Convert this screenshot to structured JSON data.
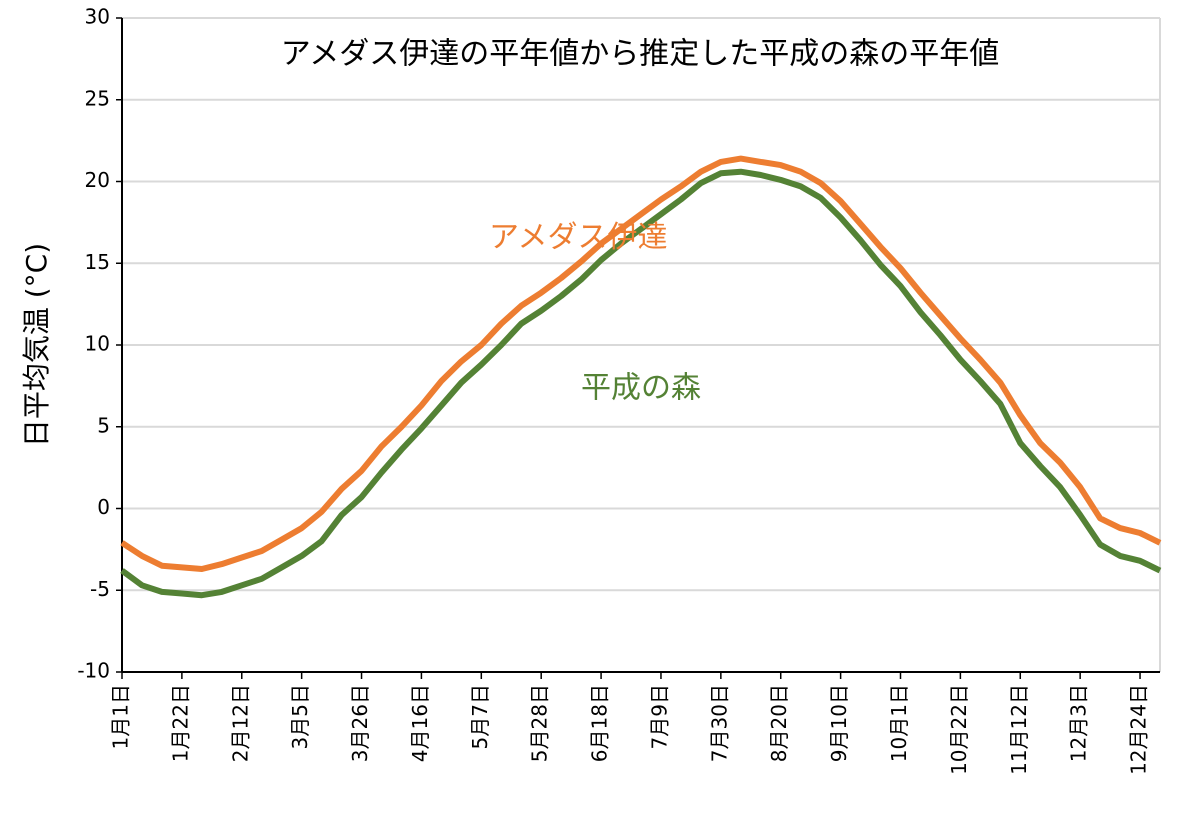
{
  "chart_data": {
    "type": "line",
    "title": "アメダス伊達の平年値から推定した平成の森の平年値",
    "y_label": "日平均気温 (°C)",
    "annotations": [
      {
        "text": "アメダス伊達",
        "color": "#ed7d31",
        "x": 160,
        "y": 16.5
      },
      {
        "text": "平成の森",
        "color": "#548235",
        "x": 182,
        "y": 7.3
      }
    ],
    "x": [
      0,
      7,
      14,
      21,
      28,
      35,
      42,
      49,
      56,
      63,
      70,
      77,
      84,
      91,
      98,
      105,
      112,
      119,
      126,
      133,
      140,
      147,
      154,
      161,
      168,
      175,
      182,
      189,
      196,
      203,
      210,
      217,
      224,
      231,
      238,
      245,
      252,
      259,
      266,
      273,
      280,
      287,
      294,
      301,
      308,
      315,
      322,
      329,
      336,
      343,
      350,
      357,
      364
    ],
    "xlim": [
      0,
      364
    ],
    "xticks": [
      {
        "value": 0,
        "label": "1月1日"
      },
      {
        "value": 21,
        "label": "1月22日"
      },
      {
        "value": 42,
        "label": "2月12日"
      },
      {
        "value": 63,
        "label": "3月5日"
      },
      {
        "value": 84,
        "label": "3月26日"
      },
      {
        "value": 105,
        "label": "4月16日"
      },
      {
        "value": 126,
        "label": "5月7日"
      },
      {
        "value": 147,
        "label": "5月28日"
      },
      {
        "value": 168,
        "label": "6月18日"
      },
      {
        "value": 189,
        "label": "7月9日"
      },
      {
        "value": 210,
        "label": "7月30日"
      },
      {
        "value": 231,
        "label": "8月20日"
      },
      {
        "value": 252,
        "label": "9月10日"
      },
      {
        "value": 273,
        "label": "10月1日"
      },
      {
        "value": 294,
        "label": "10月22日"
      },
      {
        "value": 315,
        "label": "11月12日"
      },
      {
        "value": 336,
        "label": "12月3日"
      },
      {
        "value": 357,
        "label": "12月24日"
      }
    ],
    "ylim": [
      -10,
      30
    ],
    "yticks": [
      -10,
      -5,
      0,
      5,
      10,
      15,
      20,
      25,
      30
    ],
    "grid": true,
    "series": [
      {
        "name": "アメダス伊達",
        "color": "#ed7d31",
        "values": [
          -2.1,
          -2.9,
          -3.5,
          -3.6,
          -3.7,
          -3.4,
          -3.0,
          -2.6,
          -1.9,
          -1.2,
          -0.2,
          1.2,
          2.3,
          3.8,
          5.0,
          6.3,
          7.8,
          9.0,
          10.0,
          11.3,
          12.4,
          13.2,
          14.1,
          15.1,
          16.2,
          17.1,
          18.0,
          18.9,
          19.7,
          20.6,
          21.2,
          21.4,
          21.2,
          21.0,
          20.6,
          19.9,
          18.8,
          17.4,
          16.0,
          14.7,
          13.2,
          11.8,
          10.4,
          9.1,
          7.7,
          5.7,
          4.0,
          2.8,
          1.3,
          -0.6,
          -1.2,
          -1.5,
          -2.1
        ]
      },
      {
        "name": "平成の森",
        "color": "#548235",
        "values": [
          -3.8,
          -4.7,
          -5.1,
          -5.2,
          -5.3,
          -5.1,
          -4.7,
          -4.3,
          -3.6,
          -2.9,
          -2.0,
          -0.4,
          0.7,
          2.2,
          3.6,
          4.9,
          6.3,
          7.7,
          8.8,
          10.0,
          11.3,
          12.1,
          13.0,
          14.0,
          15.2,
          16.2,
          17.1,
          18.0,
          18.9,
          19.9,
          20.5,
          20.6,
          20.4,
          20.1,
          19.7,
          19.0,
          17.8,
          16.4,
          14.9,
          13.6,
          12.0,
          10.6,
          9.1,
          7.8,
          6.4,
          4.0,
          2.6,
          1.3,
          -0.4,
          -2.2,
          -2.9,
          -3.2,
          -3.8
        ]
      }
    ]
  }
}
